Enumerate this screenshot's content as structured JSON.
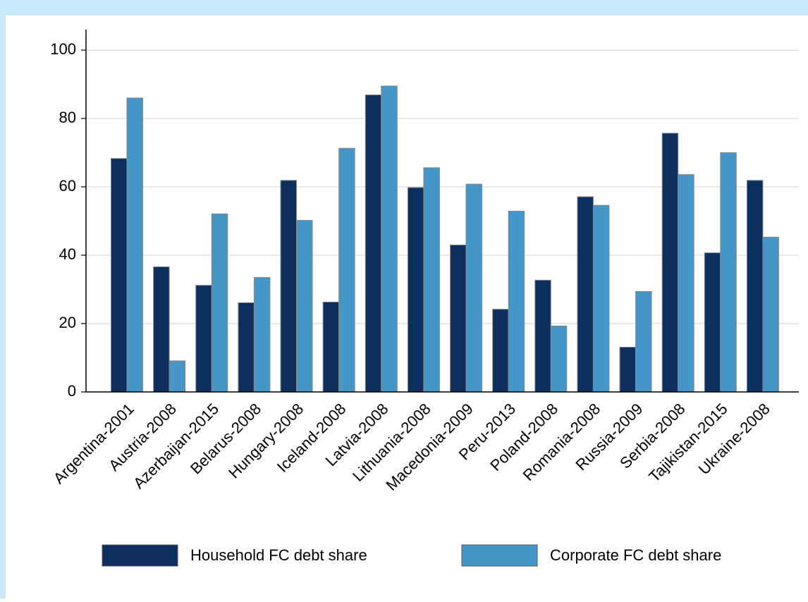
{
  "chart_data": {
    "type": "bar",
    "categories": [
      "Argentina-2001",
      "Austria-2008",
      "Azerbaijan-2015",
      "Belarus-2008",
      "Hungary-2008",
      "Iceland-2008",
      "Latvia-2008",
      "Lithuania-2008",
      "Macedonia-2009",
      "Peru-2013",
      "Poland-2008",
      "Romania-2008",
      "Russia-2009",
      "Serbia-2008",
      "Tajikistan-2015",
      "Ukraine-2008"
    ],
    "series": [
      {
        "name": "Household FC debt share",
        "color": "#0d2f5e",
        "values": [
          68.3,
          36.6,
          31.2,
          26.1,
          61.9,
          26.3,
          86.9,
          59.8,
          43.0,
          24.2,
          32.7,
          57.1,
          13.1,
          75.7,
          40.7,
          61.9
        ]
      },
      {
        "name": "Corporate FC debt share",
        "color": "#4596c8",
        "values": [
          86.0,
          9.1,
          52.1,
          33.5,
          50.2,
          71.3,
          89.5,
          65.6,
          60.8,
          52.9,
          19.3,
          54.6,
          29.4,
          63.6,
          70.0,
          45.3
        ]
      }
    ],
    "ylim": [
      0,
      106
    ],
    "yticks": [
      0,
      20,
      40,
      60,
      80,
      100
    ],
    "grid": true,
    "legend": "bottom"
  }
}
